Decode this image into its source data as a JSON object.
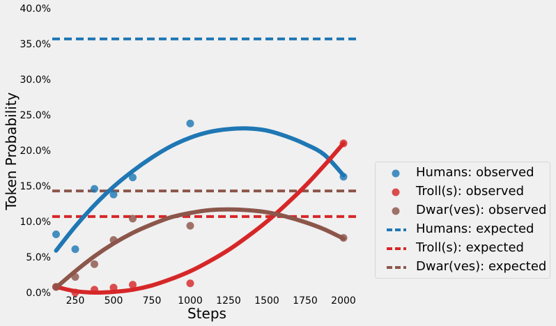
{
  "chart_data": {
    "type": "scatter",
    "xlabel": "Steps",
    "ylabel": "Token Probability",
    "xlim": [
      100,
      2100
    ],
    "ylim": [
      0,
      40
    ],
    "xticks": [
      250,
      500,
      750,
      1000,
      1250,
      1500,
      1750,
      2000
    ],
    "yticks": [
      0,
      5,
      10,
      15,
      20,
      25,
      30,
      35,
      40
    ],
    "ytick_labels": [
      "0.0%",
      "5.0%",
      "10.0%",
      "15.0%",
      "20.0%",
      "25.0%",
      "30.0%",
      "35.0%",
      "40.0%"
    ],
    "grid": false,
    "legend_position": "right",
    "series": [
      {
        "name": "Humans: observed",
        "color": "#1f77b4",
        "x": [
          125,
          250,
          375,
          500,
          625,
          1000,
          2000
        ],
        "y": [
          8.2,
          6.1,
          14.6,
          13.8,
          16.2,
          23.8,
          16.3
        ]
      },
      {
        "name": "Troll(s): observed",
        "color": "#d62728",
        "x": [
          125,
          250,
          375,
          500,
          625,
          1000,
          2000
        ],
        "y": [
          0.8,
          0.0,
          0.4,
          0.7,
          1.1,
          1.3,
          21.0
        ]
      },
      {
        "name": "Dwar(ves): observed",
        "color": "#8c564b",
        "x": [
          125,
          250,
          375,
          500,
          625,
          1000,
          2000
        ],
        "y": [
          0.8,
          2.2,
          4.0,
          7.4,
          10.4,
          9.4,
          7.7
        ]
      }
    ],
    "fits": [
      {
        "series": "Humans: observed",
        "color": "#1f77b4",
        "x": [
          125,
          250,
          375,
          500,
          625,
          750,
          875,
          1000,
          1125,
          1250,
          1375,
          1500,
          1625,
          1750,
          1875,
          2000
        ],
        "y": [
          5.9,
          9.3,
          12.3,
          14.9,
          17.1,
          19.0,
          20.6,
          21.8,
          22.6,
          23.0,
          23.1,
          22.8,
          22.0,
          20.9,
          19.4,
          16.5
        ]
      },
      {
        "series": "Troll(s): observed",
        "color": "#d62728",
        "x": [
          125,
          250,
          375,
          500,
          625,
          750,
          875,
          1000,
          1125,
          1250,
          1375,
          1500,
          1625,
          1750,
          1875,
          2000
        ],
        "y": [
          0.8,
          0.2,
          0.0,
          0.1,
          0.4,
          1.0,
          1.9,
          3.0,
          4.4,
          6.0,
          7.9,
          10.0,
          12.4,
          15.0,
          17.9,
          21.0
        ]
      },
      {
        "series": "Dwar(ves): observed",
        "color": "#8c564b",
        "x": [
          125,
          250,
          375,
          500,
          625,
          750,
          875,
          1000,
          1125,
          1250,
          1375,
          1500,
          1625,
          1750,
          1875,
          2000
        ],
        "y": [
          0.7,
          3.0,
          5.1,
          6.9,
          8.4,
          9.6,
          10.6,
          11.2,
          11.6,
          11.7,
          11.6,
          11.3,
          10.7,
          9.9,
          8.9,
          7.6
        ]
      }
    ],
    "expected": [
      {
        "name": "Humans: expected",
        "color": "#1f77b4",
        "y": 35.7
      },
      {
        "name": "Troll(s): expected",
        "color": "#d62728",
        "y": 10.7
      },
      {
        "name": "Dwar(ves): expected",
        "color": "#8c564b",
        "y": 14.3
      }
    ]
  }
}
